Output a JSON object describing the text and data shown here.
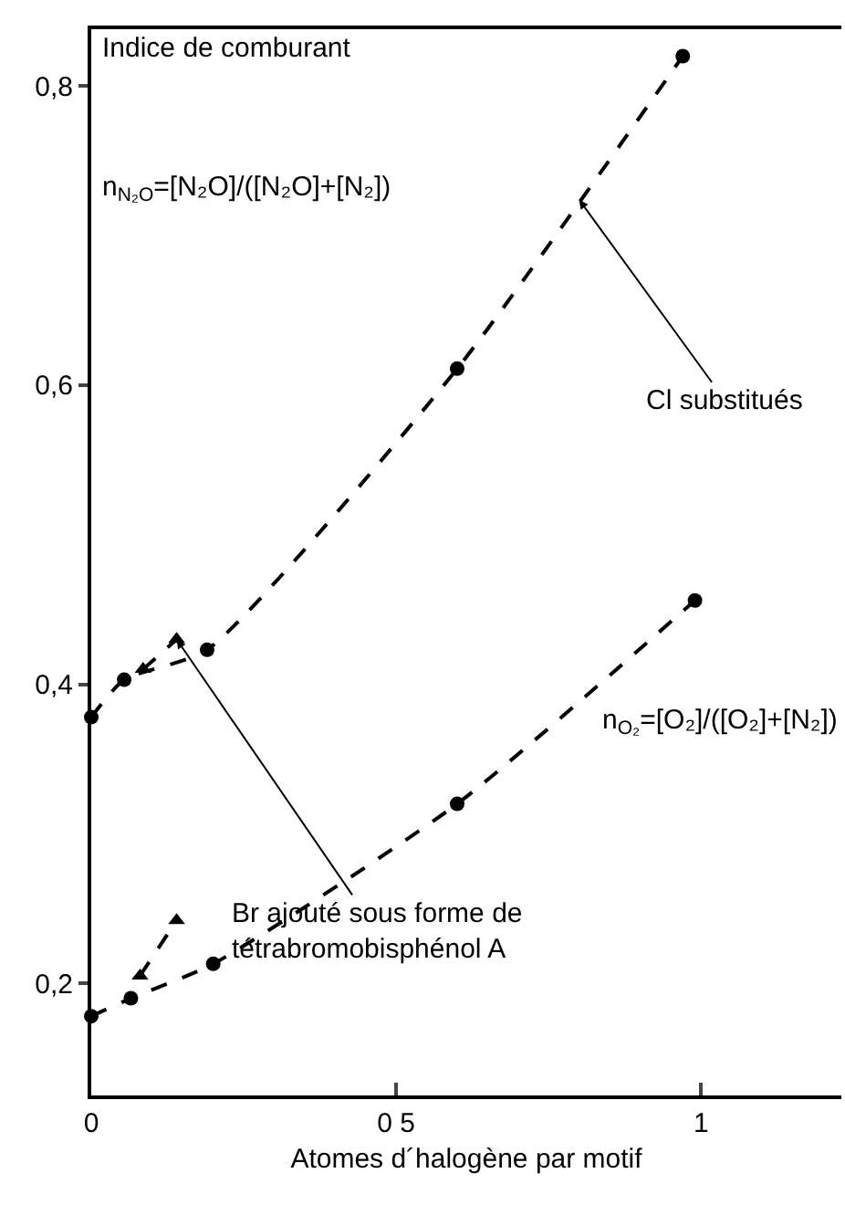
{
  "chart_data": {
    "type": "line",
    "ylabel": "Indice de comburant",
    "xlabel": "Atomes d´halogène par motif",
    "xlim": [
      0,
      1.23
    ],
    "xticks": [
      0,
      {
        "value": 0.5,
        "label": "0 5"
      },
      1
    ],
    "ylim": [
      0.125,
      0.838
    ],
    "yticks": [
      {
        "value": 0.2,
        "label": "0,2"
      },
      {
        "value": 0.4,
        "label": "0,4"
      },
      {
        "value": 0.6,
        "label": "0,6"
      },
      {
        "value": 0.8,
        "label": "0,8"
      }
    ],
    "grid": false,
    "line_style": "dashed",
    "series": [
      {
        "color": "#000000",
        "marker": "circle",
        "x": [
          0,
          0.054,
          0.19,
          0.6,
          0.97
        ],
        "values": [
          0.378,
          0.403,
          0.423,
          0.611,
          0.82
        ]
      },
      {
        "color": "#000000",
        "marker": "triangle",
        "x": [
          0.085,
          0.14
        ],
        "values": [
          0.41,
          0.43
        ]
      },
      {
        "color": "#000000",
        "marker": "circle",
        "x": [
          0,
          0.065,
          0.2,
          0.6,
          0.99
        ],
        "values": [
          0.178,
          0.19,
          0.213,
          0.32,
          0.456
        ]
      },
      {
        "color": "#000000",
        "marker": "triangle",
        "x": [
          0.08,
          0.14
        ],
        "values": [
          0.205,
          0.242
        ]
      }
    ],
    "annotations": [
      "n$_{N₂O}$=[N₂O]/([N₂O]+[N₂])",
      "n$_{O₂}$=[O₂]/([O₂]+[N₂])",
      {
        "text": "Cl substitués",
        "x": 0.8,
        "y": 0.724
      },
      {
        "text": "Br ajouté sous forme de\ntétrabromobisphénol A",
        "x": 0.14,
        "y": 0.43
      }
    ]
  }
}
